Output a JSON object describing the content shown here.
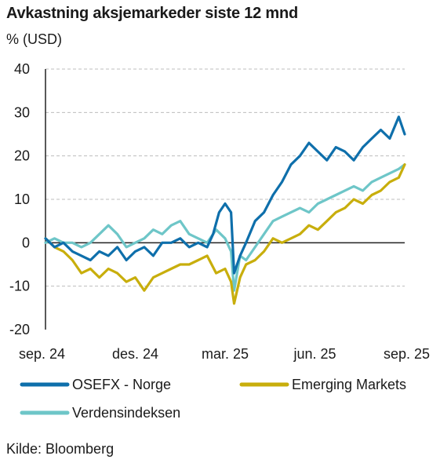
{
  "header": {
    "title": "Avkastning aksjemarkeder siste 12 mnd",
    "unit": "% (USD)"
  },
  "footer": {
    "source": "Kilde: Bloomberg"
  },
  "colors": {
    "osefx": "#0e6fab",
    "emerging": "#c8ae0c",
    "world": "#6ec6c8",
    "grid": "#bdbdbd",
    "axis": "#222222"
  },
  "chart_data": {
    "type": "line",
    "title": "Avkastning aksjemarkeder siste 12 mnd",
    "ylabel": "% (USD)",
    "ylim": [
      -20,
      40
    ],
    "yticks": [
      40,
      30,
      20,
      10,
      0,
      -10,
      -20
    ],
    "x_tick_labels": [
      "sep. 24",
      "des. 24",
      "mar. 25",
      "jun. 25",
      "sep. 25"
    ],
    "x_tick_positions": [
      0,
      3,
      6,
      9,
      12
    ],
    "x_unit": "months since sep. 24",
    "grid": "horizontal",
    "legend": "bottom",
    "series": [
      {
        "name": "OSEFX - Norge",
        "color": "#0e6fab",
        "x": [
          0,
          0.3,
          0.6,
          0.9,
          1.2,
          1.5,
          1.8,
          2.1,
          2.4,
          2.7,
          3.0,
          3.3,
          3.6,
          3.9,
          4.2,
          4.5,
          4.8,
          5.1,
          5.4,
          5.6,
          5.8,
          6.0,
          6.2,
          6.3,
          6.5,
          6.7,
          7.0,
          7.3,
          7.6,
          7.9,
          8.2,
          8.5,
          8.8,
          9.1,
          9.4,
          9.7,
          10.0,
          10.3,
          10.6,
          10.9,
          11.2,
          11.5,
          11.8,
          12.0
        ],
        "y": [
          1,
          -1,
          0,
          -2,
          -3,
          -4,
          -2,
          -3,
          -1,
          -4,
          -2,
          -1,
          -3,
          0,
          0,
          1,
          -1,
          0,
          -1,
          2,
          7,
          9,
          7,
          -7,
          -3,
          0,
          5,
          7,
          11,
          14,
          18,
          20,
          23,
          21,
          19,
          22,
          21,
          19,
          22,
          24,
          26,
          24,
          29,
          25
        ]
      },
      {
        "name": "Emerging Markets",
        "color": "#c8ae0c",
        "x": [
          0,
          0.3,
          0.6,
          0.9,
          1.2,
          1.5,
          1.8,
          2.1,
          2.4,
          2.7,
          3.0,
          3.3,
          3.6,
          3.9,
          4.2,
          4.5,
          4.8,
          5.1,
          5.4,
          5.7,
          6.0,
          6.2,
          6.3,
          6.5,
          6.7,
          7.0,
          7.3,
          7.6,
          7.9,
          8.2,
          8.5,
          8.8,
          9.1,
          9.4,
          9.7,
          10.0,
          10.3,
          10.6,
          10.9,
          11.2,
          11.5,
          11.8,
          12.0
        ],
        "y": [
          1,
          -1,
          -2,
          -4,
          -7,
          -6,
          -8,
          -6,
          -7,
          -9,
          -8,
          -11,
          -8,
          -7,
          -6,
          -5,
          -5,
          -4,
          -3,
          -7,
          -6,
          -9,
          -14,
          -8,
          -5,
          -4,
          -2,
          1,
          0,
          1,
          2,
          4,
          3,
          5,
          7,
          8,
          10,
          9,
          11,
          12,
          14,
          15,
          18
        ]
      },
      {
        "name": "Verdensindeksen",
        "color": "#6ec6c8",
        "x": [
          0,
          0.3,
          0.6,
          0.9,
          1.2,
          1.5,
          1.8,
          2.1,
          2.4,
          2.7,
          3.0,
          3.3,
          3.6,
          3.9,
          4.2,
          4.5,
          4.8,
          5.1,
          5.4,
          5.7,
          6.0,
          6.2,
          6.3,
          6.5,
          6.7,
          7.0,
          7.3,
          7.6,
          7.9,
          8.2,
          8.5,
          8.8,
          9.1,
          9.4,
          9.7,
          10.0,
          10.3,
          10.6,
          10.9,
          11.2,
          11.5,
          11.8,
          12.0
        ],
        "y": [
          0,
          1,
          0,
          0,
          -1,
          0,
          2,
          4,
          2,
          -1,
          0,
          1,
          3,
          2,
          4,
          5,
          2,
          1,
          0,
          3,
          1,
          -2,
          -11,
          -3,
          -4,
          -1,
          2,
          5,
          6,
          7,
          8,
          7,
          9,
          10,
          11,
          12,
          13,
          12,
          14,
          15,
          16,
          17,
          18
        ]
      }
    ]
  }
}
